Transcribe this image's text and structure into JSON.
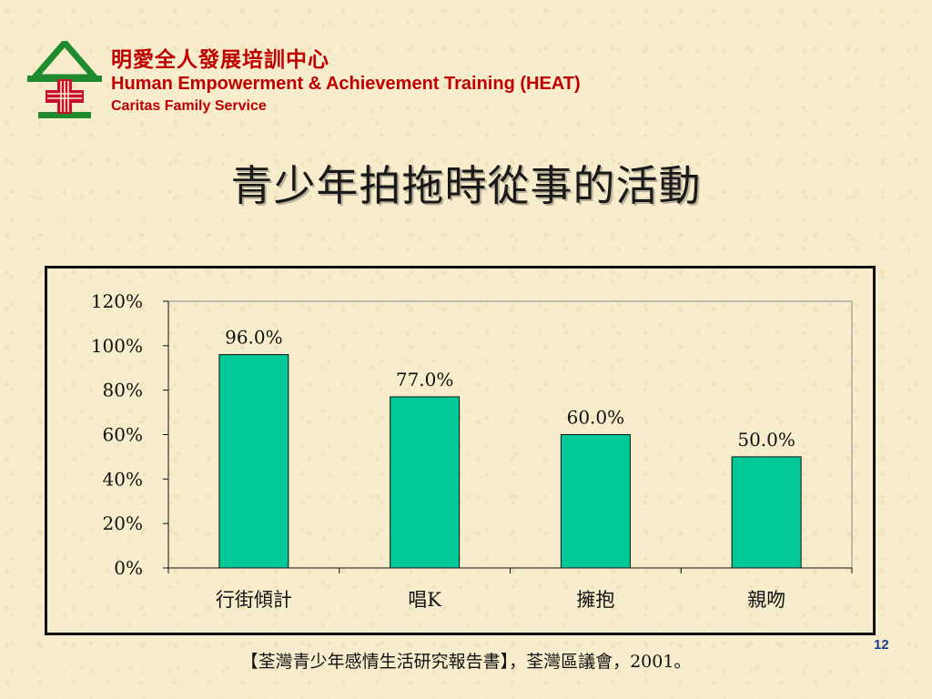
{
  "header": {
    "org_name_zh": "明愛全人發展培訓中心",
    "org_name_en": "Human Empowerment & Achievement Training (HEAT)",
    "org_sub": "Caritas Family Service",
    "logo_icon": "caritas-logo-icon"
  },
  "title": "青少年拍拖時從事的活動",
  "chart_data": {
    "type": "bar",
    "categories": [
      "行街傾計",
      "唱K",
      "擁抱",
      "親吻"
    ],
    "values": [
      96.0,
      77.0,
      60.0,
      50.0
    ],
    "data_labels": [
      "96.0%",
      "77.0%",
      "60.0%",
      "50.0%"
    ],
    "yticks": [
      "0%",
      "20%",
      "40%",
      "60%",
      "80%",
      "100%",
      "120%"
    ],
    "ylim": [
      0,
      120
    ],
    "grid": false,
    "legend": "none",
    "bar_color": "#00c896"
  },
  "footer": {
    "source": "【荃灣青少年感情生活研究報告書】，荃灣區議會，2001。",
    "page_number": "12"
  },
  "colors": {
    "brand_red": "#c00000",
    "logo_green": "#1f8a2e",
    "page_number_blue": "#1a3c8c"
  }
}
